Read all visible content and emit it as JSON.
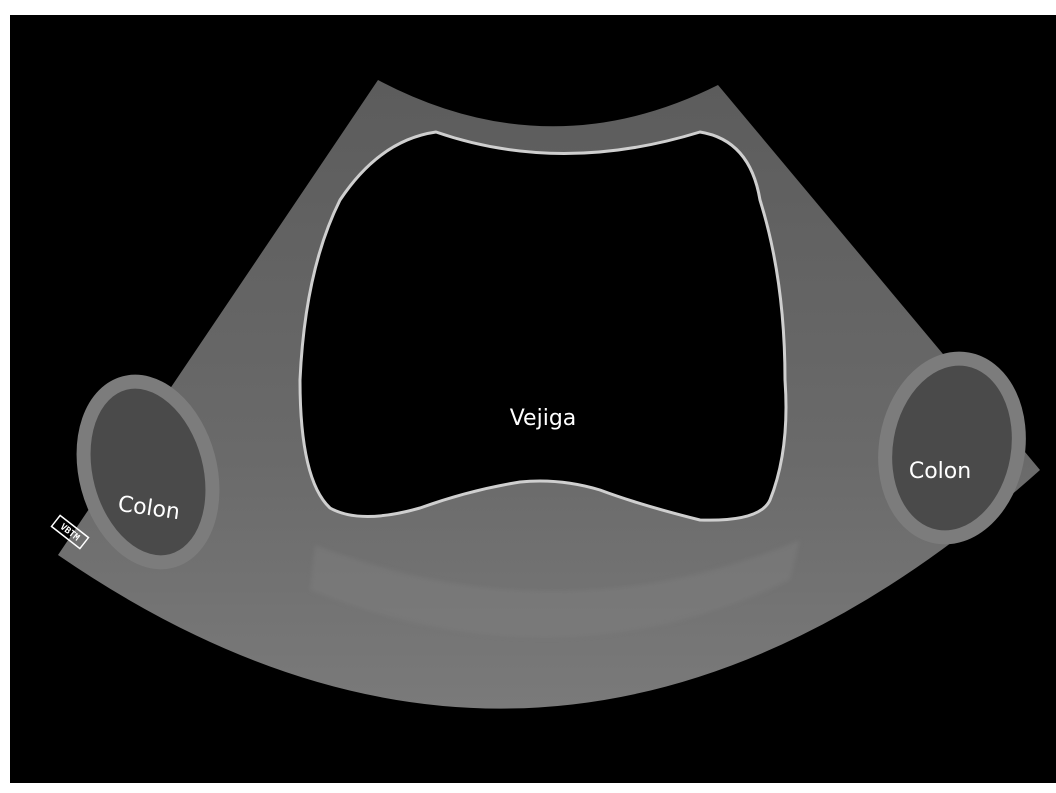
{
  "labels": {
    "bladder": "Vejiga",
    "colon_left": "Colon",
    "colon_right": "Colon",
    "watermark": "VBTM"
  }
}
